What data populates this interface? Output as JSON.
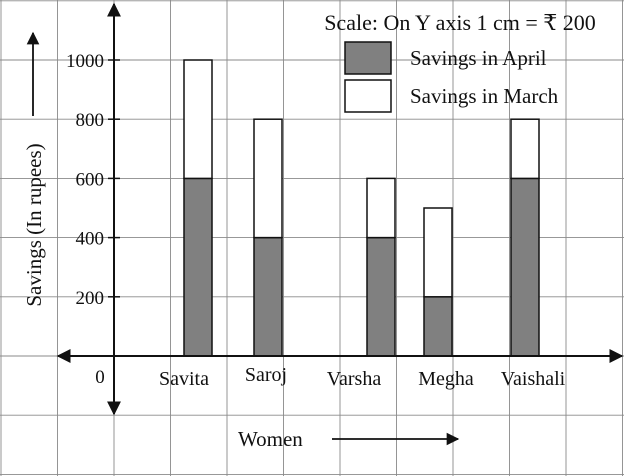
{
  "chart_data": {
    "type": "bar",
    "stacked": true,
    "categories": [
      "Savita",
      "Saroj",
      "Varsha",
      "Megha",
      "Vaishali"
    ],
    "series": [
      {
        "name": "Savings in April",
        "values": [
          600,
          400,
          400,
          200,
          600
        ],
        "color": "#808080"
      },
      {
        "name": "Savings in March",
        "values": [
          400,
          400,
          200,
          300,
          200
        ],
        "color": "#ffffff"
      }
    ],
    "totals": [
      1000,
      800,
      600,
      500,
      800
    ],
    "scale_note": "Scale: On Y axis 1 cm = ₹ 200",
    "xlabel": "Women",
    "ylabel": "Savings (In rupees)",
    "origin_label": "0",
    "y_ticks": [
      200,
      400,
      600,
      800,
      1000
    ],
    "ylim": [
      0,
      1000
    ],
    "grid": true,
    "legend_position": "top-right"
  }
}
